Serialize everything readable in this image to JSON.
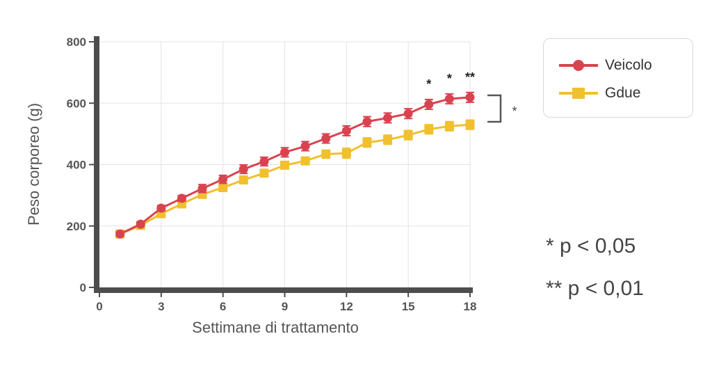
{
  "colors": {
    "veicolo": "#d9434f",
    "gdue": "#f0c02e",
    "axis": "#4d4d4d",
    "grid": "#e3e3e3"
  },
  "legend": {
    "veicolo": "Veicolo",
    "gdue": "Gdue"
  },
  "significance": {
    "bracket_label": "*",
    "note_1": "* p < 0,05",
    "note_2": "** p < 0,01"
  },
  "chart_data": {
    "type": "line",
    "title": "",
    "xlabel": "Settimane di trattamento",
    "ylabel": "Peso corporeo (g)",
    "xlim": [
      0,
      18
    ],
    "ylim": [
      0,
      800
    ],
    "xticks": [
      0,
      3,
      6,
      9,
      12,
      15,
      18
    ],
    "yticks": [
      0,
      200,
      400,
      600,
      800
    ],
    "grid": true,
    "legend_position": "right",
    "series": [
      {
        "name": "Veicolo",
        "marker": "circle",
        "x": [
          1,
          2,
          3,
          4,
          5,
          6,
          7,
          8,
          9,
          10,
          11,
          12,
          13,
          14,
          15,
          16,
          17,
          18
        ],
        "values": [
          174,
          206,
          258,
          290,
          322,
          352,
          385,
          410,
          440,
          460,
          485,
          510,
          540,
          552,
          566,
          596,
          614,
          619
        ],
        "error": [
          7,
          7,
          9,
          9,
          13,
          13,
          14,
          14,
          15,
          15,
          15,
          16,
          16,
          16,
          16,
          16,
          16,
          16
        ]
      },
      {
        "name": "Gdue",
        "marker": "square",
        "x": [
          1,
          2,
          3,
          4,
          5,
          6,
          7,
          8,
          9,
          10,
          11,
          12,
          13,
          14,
          15,
          16,
          17,
          18
        ],
        "values": [
          174,
          202,
          240,
          272,
          303,
          325,
          350,
          372,
          398,
          412,
          434,
          437,
          472,
          481,
          496,
          515,
          525,
          530
        ],
        "error": [
          6,
          6,
          8,
          8,
          10,
          11,
          11,
          11,
          11,
          12,
          13,
          16,
          15,
          15,
          15,
          15,
          15,
          15
        ]
      }
    ],
    "point_annotations": [
      {
        "x": 16,
        "label": "*"
      },
      {
        "x": 17,
        "label": "*"
      },
      {
        "x": 18,
        "label": "**"
      }
    ]
  }
}
